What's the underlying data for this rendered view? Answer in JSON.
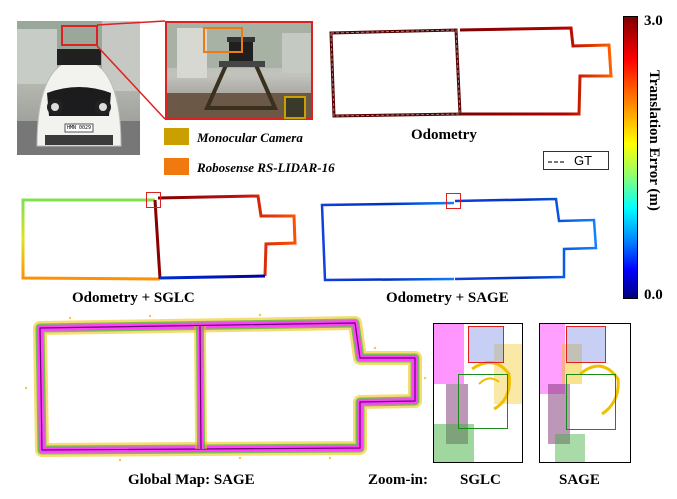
{
  "legend": {
    "camera_label": "Monocular Camera",
    "camera_color": "#c9a000",
    "lidar_label": "Robosense RS-LIDAR-16",
    "lidar_color": "#f07a10",
    "gt_label": "GT"
  },
  "panels": {
    "odometry": "Odometry",
    "odometry_sglc": "Odometry + SGLC",
    "odometry_sage": "Odometry + SAGE",
    "global_map": "Global Map: SAGE",
    "zoom_in": "Zoom-in:",
    "zoom_sglc": "SGLC",
    "zoom_sage": "SAGE"
  },
  "colorbar": {
    "max_label": "3.0",
    "min_label": "0.0",
    "title": "Translation Error (m)",
    "colors": [
      "#7f0000",
      "#ff0000",
      "#ff8000",
      "#ffff00",
      "#00ffff",
      "#0000ff",
      "#00007f"
    ]
  },
  "highlight_colors": {
    "red_box": "#e02020",
    "green_box": "#1a8a1a",
    "map_magenta": "#ff40ff",
    "map_yellow": "#f0c000",
    "map_green": "#40b040"
  },
  "photo_plate": "HMN 0029"
}
